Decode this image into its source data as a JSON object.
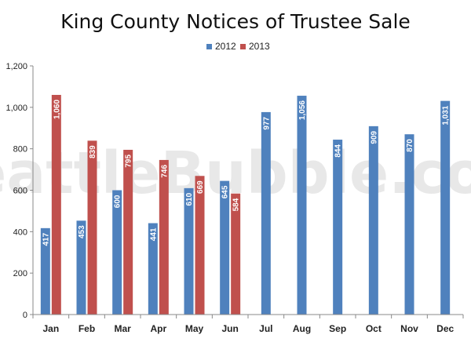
{
  "chart_data": {
    "type": "bar",
    "title": "King County Notices of Trustee Sale",
    "categories": [
      "Jan",
      "Feb",
      "Mar",
      "Apr",
      "May",
      "Jun",
      "Jul",
      "Aug",
      "Sep",
      "Oct",
      "Nov",
      "Dec"
    ],
    "series": [
      {
        "name": "2012",
        "color": "#4f81bd",
        "values": [
          417,
          453,
          600,
          441,
          610,
          645,
          977,
          1056,
          844,
          909,
          870,
          1031
        ]
      },
      {
        "name": "2013",
        "color": "#c0504d",
        "values": [
          1060,
          839,
          795,
          746,
          669,
          584,
          null,
          null,
          null,
          null,
          null,
          null
        ]
      }
    ],
    "data_labels": {
      "2012": [
        "417",
        "453",
        "600",
        "441",
        "610",
        "645",
        "977",
        "1,056",
        "844",
        "909",
        "870",
        "1,031"
      ],
      "2013": [
        "1,060",
        "839",
        "795",
        "746",
        "669",
        "584"
      ]
    },
    "ylim": [
      0,
      1200
    ],
    "yticks": [
      0,
      200,
      400,
      600,
      800,
      1000,
      1200
    ],
    "ytick_labels": [
      "0",
      "200",
      "400",
      "600",
      "800",
      "1,000",
      "1,200"
    ],
    "xlabel": "",
    "ylabel": "",
    "grid": false,
    "legend_position": "top-center",
    "watermark": "SeattleBubble.com",
    "axis_color": "#888888",
    "text_color": "#222222"
  }
}
